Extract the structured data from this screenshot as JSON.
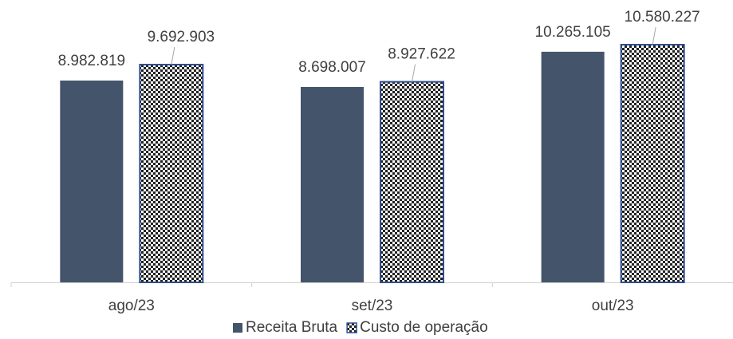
{
  "chart_data": {
    "type": "bar",
    "categories": [
      "ago/23",
      "set/23",
      "out/23"
    ],
    "series": [
      {
        "name": "Receita Bruta",
        "color": "#44546a",
        "values": [
          8982819,
          8698007,
          10265105
        ],
        "value_labels": [
          "8.982.819",
          "8.698.007",
          "10.265.105"
        ]
      },
      {
        "name": "Custo de operação",
        "color": "#2f4f8f",
        "pattern": "checker",
        "values": [
          9692903,
          8927622,
          10580227
        ],
        "value_labels": [
          "9.692.903",
          "8.927.622",
          "10.580.227"
        ]
      }
    ],
    "legend": "bottom"
  }
}
